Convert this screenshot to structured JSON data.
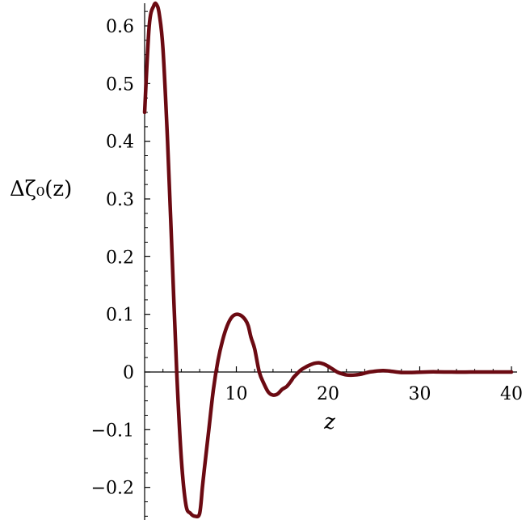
{
  "chart_data": {
    "type": "line",
    "title": "",
    "xlabel": "z",
    "ylabel": "Δζ₀(z)",
    "xlim": [
      0,
      40
    ],
    "ylim": [
      -0.25,
      0.64
    ],
    "grid": false,
    "legend": "none",
    "x_ticks": [
      10,
      20,
      30,
      40
    ],
    "x_tick_labels": [
      "10",
      "20",
      "30",
      "40"
    ],
    "y_ticks": [
      -0.2,
      -0.1,
      0,
      0.1,
      0.2,
      0.3,
      0.4,
      0.5,
      0.6
    ],
    "y_tick_labels": [
      "−0.2",
      "−0.1",
      "0",
      "0.1",
      "0.2",
      "0.3",
      "0.4",
      "0.5",
      "0.6"
    ],
    "series": [
      {
        "color": "#6b0a12",
        "x": [
          0,
          0.5,
          1,
          1.3,
          1.6,
          2,
          2.5,
          3,
          3.5,
          4,
          4.5,
          5,
          5.5,
          6,
          6.3,
          6.5,
          7,
          7.5,
          8,
          8.5,
          9,
          9.5,
          10,
          10.5,
          11,
          11.3,
          11.6,
          12,
          12.5,
          13,
          13.5,
          14,
          14.5,
          15,
          15.5,
          16,
          16.2,
          16.5,
          17,
          17.5,
          18,
          18.5,
          19,
          19.5,
          20,
          20.5,
          21,
          21.3,
          22,
          22.5,
          23,
          23.5,
          24,
          24.5,
          25,
          25.5,
          26,
          26.5,
          27,
          28,
          29,
          30,
          31,
          31.5,
          32,
          33,
          34,
          35,
          36,
          37,
          38,
          39,
          40
        ],
        "y": [
          0.45,
          0.6,
          0.635,
          0.637,
          0.62,
          0.56,
          0.4,
          0.2,
          0.0,
          -0.15,
          -0.23,
          -0.245,
          -0.25,
          -0.245,
          -0.2,
          -0.17,
          -0.1,
          -0.03,
          0.02,
          0.055,
          0.08,
          0.095,
          0.1,
          0.098,
          0.09,
          0.08,
          0.06,
          0.04,
          0.0,
          -0.02,
          -0.035,
          -0.04,
          -0.038,
          -0.03,
          -0.025,
          -0.015,
          -0.01,
          -0.005,
          0.003,
          0.008,
          0.012,
          0.015,
          0.016,
          0.014,
          0.01,
          0.005,
          0.0,
          -0.002,
          -0.005,
          -0.0055,
          -0.005,
          -0.004,
          -0.002,
          0.0,
          0.001,
          0.002,
          0.0025,
          0.002,
          0.001,
          -0.0008,
          -0.0008,
          -0.0003,
          0.0002,
          0.0003,
          0.0002,
          0.0,
          -0.0001,
          -0.0001,
          0.0,
          0.0,
          0.0,
          0.0,
          0.0
        ]
      }
    ]
  }
}
